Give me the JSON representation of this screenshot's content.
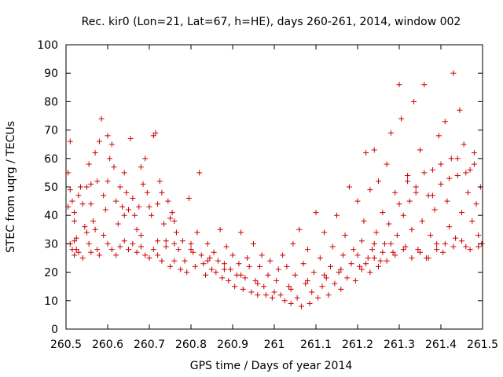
{
  "chart_data": {
    "type": "scatter",
    "title": "Rec. kir0 (Lon=21, Lat=67, h=HE), days 260-261, 2014, window 002",
    "xlabel": "GPS time / Days of year 2014",
    "ylabel": "STEC from uqrg / TECUs",
    "xlim": [
      260.5,
      261.5
    ],
    "ylim": [
      0,
      100
    ],
    "xticks": [
      "260.5",
      "260.6",
      "260.7",
      "260.8",
      "260.9",
      "261",
      "261.1",
      "261.2",
      "261.3",
      "261.4",
      "261.5"
    ],
    "yticks": [
      "0",
      "10",
      "20",
      "30",
      "40",
      "50",
      "60",
      "70",
      "80",
      "90",
      "100"
    ],
    "grid": false,
    "legend": "none",
    "marker": "plus",
    "color": "#cc0000",
    "series": [
      {
        "points": [
          [
            260.505,
            55
          ],
          [
            260.51,
            66
          ],
          [
            260.505,
            43
          ],
          [
            260.51,
            49
          ],
          [
            260.515,
            45
          ],
          [
            260.52,
            41
          ],
          [
            260.52,
            31
          ],
          [
            260.525,
            28
          ],
          [
            260.53,
            47
          ],
          [
            260.535,
            50
          ],
          [
            260.54,
            44
          ],
          [
            260.545,
            36
          ],
          [
            260.55,
            50
          ],
          [
            260.555,
            58
          ],
          [
            260.56,
            51
          ],
          [
            260.565,
            38
          ],
          [
            260.57,
            62
          ],
          [
            260.575,
            52
          ],
          [
            260.58,
            66
          ],
          [
            260.585,
            74
          ],
          [
            260.59,
            47
          ],
          [
            260.595,
            42
          ],
          [
            260.6,
            68
          ],
          [
            260.605,
            60
          ],
          [
            260.61,
            65
          ],
          [
            260.615,
            57
          ],
          [
            260.62,
            45
          ],
          [
            260.625,
            37
          ],
          [
            260.63,
            50
          ],
          [
            260.635,
            43
          ],
          [
            260.64,
            55
          ],
          [
            260.645,
            48
          ],
          [
            260.65,
            42
          ],
          [
            260.655,
            67
          ],
          [
            260.66,
            46
          ],
          [
            260.665,
            40
          ],
          [
            260.67,
            35
          ],
          [
            260.675,
            43
          ],
          [
            260.68,
            57
          ],
          [
            260.685,
            51
          ],
          [
            260.69,
            60
          ],
          [
            260.695,
            48
          ],
          [
            260.7,
            43
          ],
          [
            260.705,
            40
          ],
          [
            260.71,
            68
          ],
          [
            260.715,
            69
          ],
          [
            260.72,
            44
          ],
          [
            260.725,
            52
          ],
          [
            260.73,
            48
          ],
          [
            260.735,
            37
          ],
          [
            260.74,
            31
          ],
          [
            260.745,
            45
          ],
          [
            260.75,
            39
          ],
          [
            260.755,
            41
          ],
          [
            260.76,
            38
          ],
          [
            260.765,
            34
          ],
          [
            260.51,
            30
          ],
          [
            260.515,
            28
          ],
          [
            260.52,
            26
          ],
          [
            260.525,
            32
          ],
          [
            260.53,
            27
          ],
          [
            260.54,
            25
          ],
          [
            260.55,
            34
          ],
          [
            260.555,
            30
          ],
          [
            260.56,
            27
          ],
          [
            260.57,
            35
          ],
          [
            260.575,
            28
          ],
          [
            260.58,
            26
          ],
          [
            260.59,
            33
          ],
          [
            260.6,
            30
          ],
          [
            260.61,
            28
          ],
          [
            260.62,
            26
          ],
          [
            260.63,
            29
          ],
          [
            260.64,
            31
          ],
          [
            260.65,
            28
          ],
          [
            260.66,
            30
          ],
          [
            260.67,
            27
          ],
          [
            260.68,
            29
          ],
          [
            260.69,
            26
          ],
          [
            260.7,
            25
          ],
          [
            260.71,
            28
          ],
          [
            260.72,
            26
          ],
          [
            260.73,
            24
          ],
          [
            260.74,
            29
          ],
          [
            260.75,
            22
          ],
          [
            260.76,
            24
          ],
          [
            260.77,
            28
          ],
          [
            260.775,
            21
          ],
          [
            260.78,
            31
          ],
          [
            260.785,
            24
          ],
          [
            260.79,
            20
          ],
          [
            260.795,
            46
          ],
          [
            260.8,
            30
          ],
          [
            260.805,
            27
          ],
          [
            260.81,
            22
          ],
          [
            260.815,
            34
          ],
          [
            260.82,
            55
          ],
          [
            260.825,
            26
          ],
          [
            260.83,
            23
          ],
          [
            260.835,
            19
          ],
          [
            260.84,
            30
          ],
          [
            260.845,
            25
          ],
          [
            260.85,
            21
          ],
          [
            260.855,
            27
          ],
          [
            260.86,
            20
          ],
          [
            260.865,
            24
          ],
          [
            260.87,
            35
          ],
          [
            260.875,
            18
          ],
          [
            260.88,
            23
          ],
          [
            260.885,
            29
          ],
          [
            260.89,
            17
          ],
          [
            260.895,
            21
          ],
          [
            260.9,
            26
          ],
          [
            260.905,
            15
          ],
          [
            260.91,
            19
          ],
          [
            260.915,
            23
          ],
          [
            260.92,
            34
          ],
          [
            260.925,
            14
          ],
          [
            260.93,
            18
          ],
          [
            260.935,
            25
          ],
          [
            260.94,
            22
          ],
          [
            260.945,
            13
          ],
          [
            260.95,
            30
          ],
          [
            260.955,
            17
          ],
          [
            260.96,
            12
          ],
          [
            260.965,
            22
          ],
          [
            260.97,
            26
          ],
          [
            260.975,
            15
          ],
          [
            260.98,
            12
          ],
          [
            260.985,
            19
          ],
          [
            260.99,
            24
          ],
          [
            260.995,
            11
          ],
          [
            261.0,
            13
          ],
          [
            261.005,
            17
          ],
          [
            261.01,
            21
          ],
          [
            261.015,
            12
          ],
          [
            261.02,
            26
          ],
          [
            261.025,
            10
          ],
          [
            261.03,
            22
          ],
          [
            261.035,
            15
          ],
          [
            261.04,
            9
          ],
          [
            261.045,
            30
          ],
          [
            261.05,
            19
          ],
          [
            261.055,
            11
          ],
          [
            261.06,
            35
          ],
          [
            261.065,
            8
          ],
          [
            261.07,
            23
          ],
          [
            261.075,
            16
          ],
          [
            261.08,
            28
          ],
          [
            261.085,
            9
          ],
          [
            261.09,
            13
          ],
          [
            261.095,
            20
          ],
          [
            261.1,
            41
          ],
          [
            261.105,
            11
          ],
          [
            261.11,
            25
          ],
          [
            261.115,
            15
          ],
          [
            261.12,
            34
          ],
          [
            261.125,
            18
          ],
          [
            261.13,
            12
          ],
          [
            261.135,
            22
          ],
          [
            261.14,
            29
          ],
          [
            261.145,
            16
          ],
          [
            261.15,
            40
          ],
          [
            261.155,
            20
          ],
          [
            261.16,
            14
          ],
          [
            261.165,
            26
          ],
          [
            261.17,
            33
          ],
          [
            261.175,
            18
          ],
          [
            261.18,
            50
          ],
          [
            261.185,
            23
          ],
          [
            261.19,
            28
          ],
          [
            261.195,
            17
          ],
          [
            261.2,
            45
          ],
          [
            261.205,
            22
          ],
          [
            261.21,
            31
          ],
          [
            261.215,
            38
          ],
          [
            261.22,
            62
          ],
          [
            261.225,
            25
          ],
          [
            261.23,
            49
          ],
          [
            261.235,
            28
          ],
          [
            261.24,
            63
          ],
          [
            261.245,
            34
          ],
          [
            261.25,
            52
          ],
          [
            261.255,
            24
          ],
          [
            261.26,
            41
          ],
          [
            261.265,
            30
          ],
          [
            261.27,
            58
          ],
          [
            261.275,
            37
          ],
          [
            261.28,
            69
          ],
          [
            261.285,
            27
          ],
          [
            261.29,
            48
          ],
          [
            261.295,
            33
          ],
          [
            261.3,
            86
          ],
          [
            261.305,
            74
          ],
          [
            261.31,
            40
          ],
          [
            261.315,
            29
          ],
          [
            261.32,
            54
          ],
          [
            261.325,
            45
          ],
          [
            261.33,
            35
          ],
          [
            261.335,
            80
          ],
          [
            261.34,
            50
          ],
          [
            261.345,
            28
          ],
          [
            261.35,
            63
          ],
          [
            261.355,
            38
          ],
          [
            261.36,
            86
          ],
          [
            261.365,
            25
          ],
          [
            261.37,
            47
          ],
          [
            261.375,
            33
          ],
          [
            261.38,
            56
          ],
          [
            261.385,
            42
          ],
          [
            261.39,
            30
          ],
          [
            261.395,
            68
          ],
          [
            261.4,
            51
          ],
          [
            261.405,
            27
          ],
          [
            261.41,
            73
          ],
          [
            261.415,
            45
          ],
          [
            261.42,
            36
          ],
          [
            261.425,
            60
          ],
          [
            261.43,
            90
          ],
          [
            261.435,
            32
          ],
          [
            261.44,
            54
          ],
          [
            261.445,
            77
          ],
          [
            261.45,
            41
          ],
          [
            261.455,
            65
          ],
          [
            261.46,
            29
          ],
          [
            261.465,
            48
          ],
          [
            261.47,
            56
          ],
          [
            261.475,
            38
          ],
          [
            261.48,
            62
          ],
          [
            261.485,
            44
          ],
          [
            261.49,
            33
          ],
          [
            261.495,
            50
          ],
          [
            261.498,
            30
          ],
          [
            261.21,
            21
          ],
          [
            261.22,
            23
          ],
          [
            261.23,
            20
          ],
          [
            261.24,
            25
          ],
          [
            261.25,
            22
          ],
          [
            261.26,
            27
          ],
          [
            261.27,
            24
          ],
          [
            261.28,
            30
          ],
          [
            261.29,
            26
          ],
          [
            261.31,
            28
          ],
          [
            261.33,
            25
          ],
          [
            261.35,
            27
          ],
          [
            261.37,
            25
          ],
          [
            261.39,
            28
          ],
          [
            261.41,
            30
          ],
          [
            261.43,
            29
          ],
          [
            261.45,
            31
          ],
          [
            261.47,
            28
          ],
          [
            261.49,
            29
          ],
          [
            261.3,
            44
          ],
          [
            261.32,
            52
          ],
          [
            261.34,
            48
          ],
          [
            261.36,
            55
          ],
          [
            261.38,
            47
          ],
          [
            261.4,
            58
          ],
          [
            261.42,
            53
          ],
          [
            261.44,
            60
          ],
          [
            261.46,
            55
          ],
          [
            261.48,
            58
          ],
          [
            260.52,
            38
          ],
          [
            260.56,
            44
          ],
          [
            260.6,
            52
          ],
          [
            260.64,
            40
          ],
          [
            260.68,
            33
          ],
          [
            260.72,
            31
          ],
          [
            260.76,
            30
          ],
          [
            260.8,
            28
          ],
          [
            260.84,
            24
          ],
          [
            260.88,
            21
          ],
          [
            260.92,
            19
          ],
          [
            260.96,
            16
          ],
          [
            261.04,
            14
          ],
          [
            261.08,
            17
          ],
          [
            261.12,
            19
          ],
          [
            261.16,
            21
          ],
          [
            261.2,
            26
          ],
          [
            261.24,
            30
          ]
        ]
      }
    ]
  }
}
